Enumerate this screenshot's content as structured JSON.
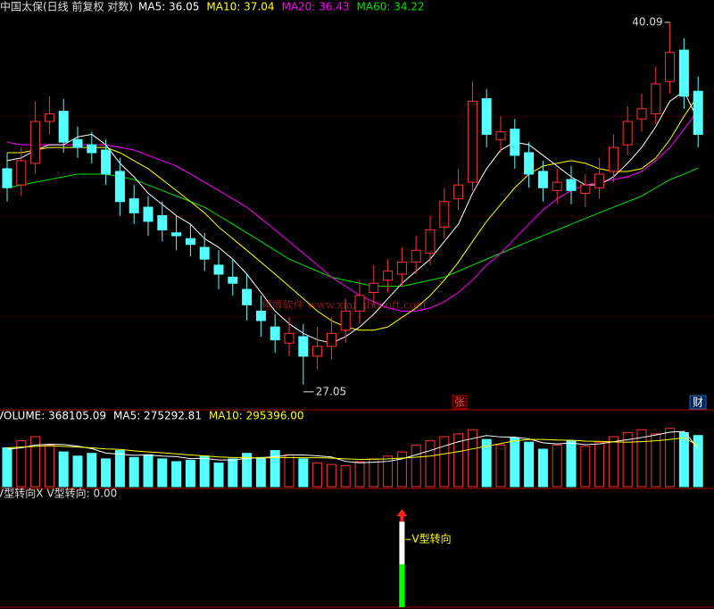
{
  "chart_data": [
    {
      "type": "candlestick",
      "title": "中国太保(日线 前复权 对数)",
      "log_scale": true,
      "ylim": [
        26.5,
        40.6
      ],
      "up_color": "#ff3232",
      "down_color": "#54ffff",
      "open": [
        34.2,
        33.6,
        34.4,
        36.0,
        36.4,
        35.3,
        35.1,
        34.9,
        34.1,
        33.1,
        32.8,
        32.5,
        31.9,
        31.7,
        31.4,
        30.8,
        30.4,
        30.0,
        29.3,
        28.8,
        28.3,
        28.5,
        27.9,
        28.2,
        28.7,
        29.3,
        29.9,
        30.3,
        30.5,
        30.9,
        31.2,
        32.1,
        33.1,
        33.7,
        36.9,
        35.3,
        35.7,
        34.8,
        34.1,
        33.4,
        33.8,
        33.3,
        33.5,
        34.1,
        35.1,
        36.1,
        36.3,
        37.6,
        38.9,
        37.2
      ],
      "high": [
        34.8,
        35.0,
        36.8,
        37.0,
        36.9,
        35.8,
        35.6,
        35.3,
        34.6,
        33.6,
        33.2,
        33.0,
        32.5,
        32.2,
        31.9,
        31.3,
        31.0,
        30.5,
        29.8,
        29.2,
        29.1,
        28.9,
        28.8,
        29.1,
        29.7,
        30.3,
        30.8,
        31.0,
        31.4,
        31.8,
        32.5,
        33.5,
        34.2,
        37.6,
        37.3,
        36.2,
        36.1,
        35.2,
        34.5,
        34.2,
        34.3,
        34.0,
        34.6,
        35.5,
        36.6,
        37.1,
        38.2,
        40.09,
        39.4,
        37.8
      ],
      "low": [
        33.0,
        33.2,
        34.0,
        35.5,
        34.8,
        34.6,
        34.4,
        33.6,
        32.5,
        32.2,
        31.8,
        31.6,
        31.3,
        31.1,
        30.6,
        30.0,
        29.8,
        29.0,
        28.5,
        28.0,
        27.9,
        27.05,
        27.5,
        27.8,
        28.3,
        28.9,
        29.5,
        29.9,
        30.1,
        30.5,
        30.8,
        31.7,
        32.7,
        33.4,
        35.0,
        34.8,
        34.2,
        33.5,
        33.0,
        32.9,
        32.9,
        32.8,
        33.1,
        33.7,
        34.7,
        35.6,
        35.9,
        37.1,
        36.5,
        35.0
      ],
      "close": [
        33.5,
        34.5,
        36.0,
        36.3,
        35.2,
        35.0,
        34.8,
        34.0,
        33.0,
        32.6,
        32.3,
        32.0,
        31.8,
        31.5,
        31.0,
        30.5,
        30.2,
        29.5,
        29.0,
        28.4,
        28.6,
        27.9,
        28.2,
        28.6,
        29.3,
        29.8,
        30.2,
        30.6,
        30.9,
        31.3,
        32.0,
        33.0,
        33.6,
        36.8,
        35.5,
        35.6,
        34.7,
        34.0,
        33.5,
        33.7,
        33.4,
        33.6,
        34.0,
        35.0,
        36.0,
        36.5,
        37.5,
        38.8,
        37.0,
        35.5
      ],
      "series": [
        {
          "name": "MA5: 36.05",
          "color": "#ffffff",
          "values": [
            34.5,
            34.6,
            34.9,
            35.1,
            35.1,
            35.4,
            35.5,
            35.1,
            34.4,
            33.9,
            33.3,
            32.9,
            32.5,
            32.2,
            31.7,
            31.4,
            31.0,
            30.5,
            29.9,
            29.3,
            28.9,
            28.6,
            28.4,
            28.3,
            28.5,
            28.8,
            29.2,
            29.7,
            30.2,
            30.6,
            31.0,
            31.6,
            32.2,
            33.3,
            34.2,
            34.9,
            35.2,
            35.1,
            34.7,
            34.3,
            33.9,
            33.6,
            33.6,
            33.9,
            34.4,
            35.0,
            35.8,
            36.8,
            37.2,
            36.05
          ]
        },
        {
          "name": "MA10: 37.04",
          "color": "#ffff00",
          "values": [
            34.8,
            34.8,
            34.9,
            35.0,
            35.0,
            35.0,
            35.0,
            35.0,
            34.8,
            34.5,
            34.2,
            33.8,
            33.4,
            33.0,
            32.6,
            32.1,
            31.7,
            31.3,
            30.9,
            30.5,
            30.1,
            29.7,
            29.3,
            29.0,
            28.8,
            28.7,
            28.7,
            28.8,
            29.1,
            29.4,
            29.8,
            30.3,
            30.9,
            31.6,
            32.3,
            32.9,
            33.5,
            34.0,
            34.3,
            34.4,
            34.5,
            34.4,
            34.2,
            34.1,
            34.1,
            34.2,
            34.6,
            35.3,
            36.2,
            37.04
          ]
        },
        {
          "name": "MA20: 36.43",
          "color": "#ff00ff",
          "values": [
            35.2,
            35.1,
            35.1,
            35.1,
            35.1,
            35.1,
            35.1,
            35.1,
            35.0,
            34.9,
            34.7,
            34.5,
            34.3,
            34.0,
            33.7,
            33.4,
            33.1,
            32.8,
            32.4,
            32.0,
            31.6,
            31.2,
            30.8,
            30.4,
            30.1,
            29.8,
            29.6,
            29.4,
            29.3,
            29.3,
            29.4,
            29.6,
            29.9,
            30.3,
            30.8,
            31.2,
            31.7,
            32.2,
            32.7,
            33.1,
            33.4,
            33.6,
            33.7,
            33.8,
            33.9,
            34.1,
            34.5,
            35.0,
            35.7,
            36.43
          ]
        },
        {
          "name": "MA60: 34.22",
          "color": "#00e600",
          "values": [
            33.5,
            33.6,
            33.7,
            33.8,
            33.9,
            34.0,
            34.0,
            34.0,
            33.9,
            33.8,
            33.6,
            33.4,
            33.2,
            33.0,
            32.8,
            32.5,
            32.2,
            31.9,
            31.6,
            31.3,
            31.0,
            30.8,
            30.6,
            30.4,
            30.3,
            30.2,
            30.1,
            30.1,
            30.1,
            30.2,
            30.3,
            30.4,
            30.6,
            30.8,
            31.0,
            31.2,
            31.4,
            31.6,
            31.8,
            32.0,
            32.2,
            32.4,
            32.6,
            32.8,
            33.0,
            33.2,
            33.5,
            33.8,
            34.0,
            34.22
          ]
        }
      ],
      "annotations": [
        "40.09",
        "27.05"
      ],
      "watermark": "翔博软件 www.xiangbosoft.com",
      "badges": [
        "张",
        "财"
      ]
    },
    {
      "type": "volume",
      "ylim": [
        0,
        450000
      ],
      "series": [
        {
          "name": "VOLUME: 368105.09",
          "color": "#ffffff",
          "values": [
            280000,
            330000,
            360000,
            300000,
            250000,
            220000,
            240000,
            200000,
            260000,
            210000,
            230000,
            200000,
            180000,
            190000,
            220000,
            170000,
            200000,
            240000,
            210000,
            260000,
            230000,
            200000,
            170000,
            160000,
            150000,
            180000,
            200000,
            220000,
            250000,
            300000,
            330000,
            360000,
            380000,
            410000,
            340000,
            300000,
            350000,
            320000,
            270000,
            300000,
            330000,
            290000,
            320000,
            360000,
            390000,
            410000,
            380000,
            420000,
            390000,
            368105.09
          ]
        },
        {
          "name": "MA5: 275292.81",
          "color": "#ffffff",
          "values": [
            270000,
            280000,
            300000,
            305000,
            304000,
            292000,
            274000,
            242000,
            234000,
            226000,
            228000,
            220000,
            216000,
            202000,
            204000,
            192000,
            192000,
            204000,
            208000,
            216000,
            228000,
            228000,
            222000,
            214000,
            182000,
            172000,
            176000,
            182000,
            200000,
            230000,
            260000,
            292000,
            324000,
            346000,
            368000,
            358000,
            356000,
            344000,
            316000,
            308000,
            314000,
            302000,
            308000,
            324000,
            338000,
            354000,
            372000,
            392000,
            398000,
            275292.81
          ]
        },
        {
          "name": "MA10: 295396.00",
          "color": "#ffff00",
          "values": [
            280000,
            285000,
            290000,
            295000,
            290000,
            285000,
            280000,
            272000,
            268000,
            258000,
            250000,
            244000,
            236000,
            228000,
            222000,
            214000,
            210000,
            210000,
            206000,
            210000,
            210000,
            208000,
            208000,
            206000,
            200000,
            196000,
            198000,
            200000,
            206000,
            212000,
            220000,
            236000,
            252000,
            272000,
            292000,
            310000,
            330000,
            340000,
            340000,
            336000,
            334000,
            328000,
            326000,
            322000,
            320000,
            324000,
            330000,
            340000,
            352000,
            295396
          ]
        }
      ]
    },
    {
      "type": "indicator",
      "title": "V型转向X",
      "ylim": [
        0,
        1.2
      ],
      "annotation": "V型转向",
      "series": [
        {
          "name": "V型转向: 0.00",
          "color": "#00ff00",
          "values": [
            0,
            0,
            0,
            0,
            0,
            0,
            0,
            0,
            0,
            0,
            0,
            0,
            0,
            0,
            0,
            0,
            0,
            0,
            0,
            0,
            0,
            0,
            0,
            0,
            0,
            0,
            0,
            0,
            1,
            0,
            0,
            0,
            0,
            0,
            0,
            0,
            0,
            0,
            0,
            0,
            0,
            0,
            0,
            0,
            0,
            0,
            0,
            0,
            0,
            0
          ]
        }
      ]
    }
  ]
}
